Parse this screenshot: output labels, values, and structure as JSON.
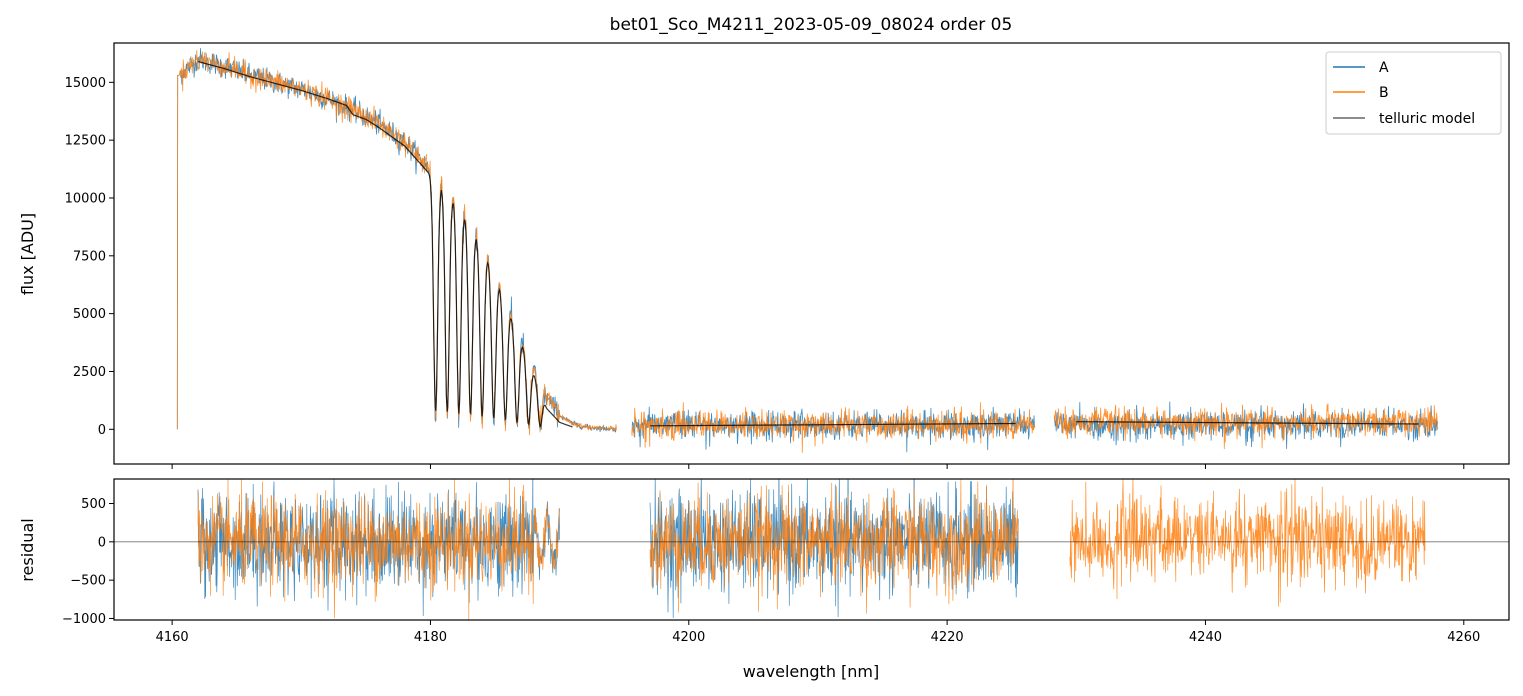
{
  "chart_data": {
    "type": "line",
    "title": "bet01_Sco_M4211_2023-05-09_08024  order 05",
    "xlabel": "wavelength [nm]",
    "xlim": [
      4155.5,
      4263.5
    ],
    "xticks": [
      4160,
      4180,
      4200,
      4220,
      4240,
      4260
    ],
    "colors": {
      "A": "#1f77b4",
      "B": "#ff7f0e",
      "telluric": "#000000"
    },
    "legend": {
      "placement": "top-right",
      "entries": [
        "A",
        "B",
        "telluric model"
      ]
    },
    "panels": [
      {
        "name": "flux",
        "ylabel": "flux [ADU]",
        "ylim": [
          -1500,
          16700
        ],
        "yticks": [
          0,
          2500,
          5000,
          7500,
          10000,
          12500,
          15000
        ],
        "segments": [
          {
            "x_range": [
              4160.4,
              4194.4
            ]
          },
          {
            "x_range": [
              4195.6,
              4226.8
            ]
          },
          {
            "x_range": [
              4228.3,
              4258.0
            ]
          }
        ],
        "continuum_points": [
          [
            4160.5,
            15300
          ],
          [
            4162,
            16000
          ],
          [
            4164,
            15700
          ],
          [
            4166,
            15300
          ],
          [
            4168,
            15000
          ],
          [
            4170,
            14700
          ],
          [
            4172,
            14300
          ],
          [
            4174,
            13800
          ],
          [
            4176,
            13200
          ],
          [
            4178,
            12400
          ],
          [
            4180,
            11200
          ],
          [
            4181,
            10600
          ],
          [
            4182,
            10000
          ],
          [
            4183,
            9100
          ],
          [
            4184,
            8000
          ],
          [
            4185,
            6700
          ],
          [
            4186,
            5400
          ],
          [
            4187,
            4000
          ],
          [
            4188,
            2600
          ],
          [
            4189,
            1400
          ],
          [
            4190,
            600
          ],
          [
            4191,
            250
          ],
          [
            4192,
            100
          ],
          [
            4194.4,
            0
          ]
        ],
        "absorption_lines": [
          4180.4,
          4181.3,
          4182.2,
          4183.1,
          4184.0,
          4184.9,
          4185.8,
          4186.7,
          4187.6,
          4188.5
        ],
        "telluric_model_points": [
          [
            4162,
            15900
          ],
          [
            4164,
            15600
          ],
          [
            4166,
            15250
          ],
          [
            4168,
            14950
          ],
          [
            4170,
            14650
          ],
          [
            4172,
            14300
          ],
          [
            4173.5,
            14000
          ],
          [
            4174,
            13600
          ],
          [
            4175,
            13400
          ],
          [
            4176,
            13050
          ],
          [
            4178,
            12250
          ],
          [
            4180,
            11000
          ],
          [
            4181,
            10400
          ],
          [
            4182,
            9800
          ],
          [
            4183,
            8900
          ],
          [
            4184,
            7900
          ],
          [
            4185,
            6600
          ],
          [
            4186,
            5200
          ],
          [
            4187,
            3800
          ],
          [
            4188,
            2400
          ],
          [
            4189,
            900
          ],
          [
            4190,
            300
          ],
          [
            4191,
            100
          ]
        ],
        "telluric_model_segments": [
          {
            "x": [
              4197,
              4225.3
            ],
            "y": [
              150,
              250
            ]
          },
          {
            "x": [
              4230,
              4256.5
            ],
            "y": [
              330,
              230
            ]
          }
        ],
        "noise": {
          "A": 650,
          "B": 650
        }
      },
      {
        "name": "residual",
        "ylabel": "residual",
        "ylim": [
          -1020,
          820
        ],
        "yticks": [
          -1000,
          -500,
          0,
          500
        ],
        "segments": [
          {
            "x_range": [
              4162.0,
              4190.0
            ],
            "series": [
              "A",
              "B"
            ]
          },
          {
            "x_range": [
              4197.0,
              4225.5
            ],
            "series": [
              "A",
              "B"
            ]
          },
          {
            "x_range": [
              4229.5,
              4257.0
            ],
            "series": [
              "B"
            ]
          }
        ],
        "noise": {
          "A": 330,
          "B": 300
        }
      }
    ]
  }
}
